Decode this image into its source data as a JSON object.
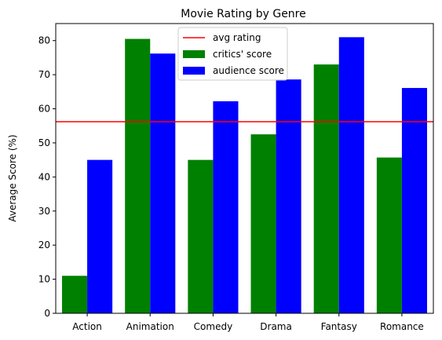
{
  "chart_data": {
    "type": "bar",
    "title": "Movie Rating by Genre",
    "xlabel": "",
    "ylabel": "Average Score (%)",
    "ylim": [
      0,
      85
    ],
    "yticks": [
      0,
      10,
      20,
      30,
      40,
      50,
      60,
      70,
      80
    ],
    "categories": [
      "Action",
      "Animation",
      "Comedy",
      "Drama",
      "Fantasy",
      "Romance"
    ],
    "series": [
      {
        "name": "critics' score",
        "color": "#008000",
        "values": [
          11,
          80.5,
          45,
          52.5,
          73,
          45.7
        ]
      },
      {
        "name": "audience score",
        "color": "#0000ff",
        "values": [
          45,
          76.2,
          62.2,
          68.6,
          81,
          66.1
        ]
      }
    ],
    "reference_line": {
      "name": "avg rating",
      "value": 56.2,
      "color": "#ff0000"
    },
    "legend_position": "top-center",
    "grid": false
  }
}
